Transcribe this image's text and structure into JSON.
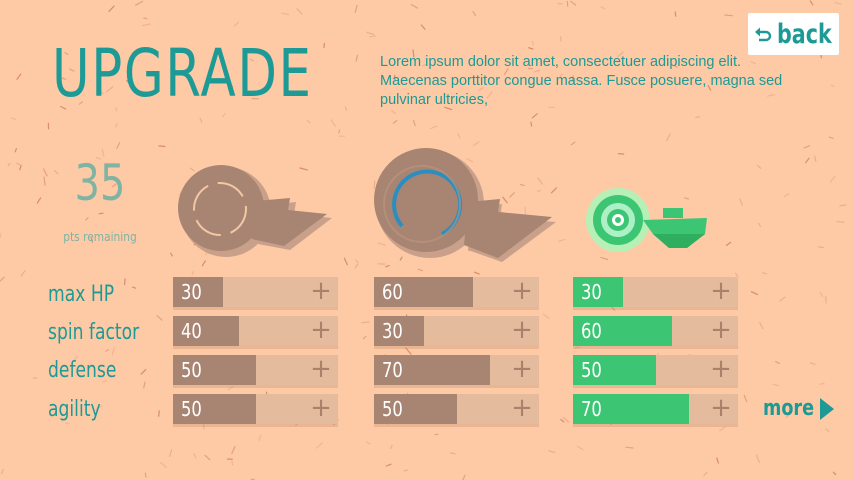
{
  "header": {
    "title": "UPGRADE",
    "description": "Lorem ipsum dolor sit amet, consectetuer adipiscing elit. Maecenas porttitor congue massa. Fusce posuere, magna sed pulvinar ultricies,",
    "back_label": "back",
    "back_icon": "return-arrow-icon"
  },
  "points": {
    "value": "35",
    "label": "pts remaining"
  },
  "stats": [
    "max HP",
    "spin factor",
    "defense",
    "agility"
  ],
  "max_value": 100,
  "units": [
    {
      "name": "unit-1",
      "state": "available",
      "values": [
        "30",
        "40",
        "50",
        "50"
      ]
    },
    {
      "name": "unit-2",
      "state": "available",
      "values": [
        "60",
        "30",
        "70",
        "50"
      ]
    },
    {
      "name": "unit-3",
      "state": "selected",
      "values": [
        "30",
        "60",
        "50",
        "70"
      ]
    }
  ],
  "plus_symbol": "+",
  "more_label": "more",
  "colors": {
    "teal": "#1d9a96",
    "background": "#fdcaa5",
    "bar_track": "#e5bb9d",
    "bar_fill": "#a88472",
    "bar_fill_selected": "#3cc674",
    "points": "#7fb3a3"
  }
}
